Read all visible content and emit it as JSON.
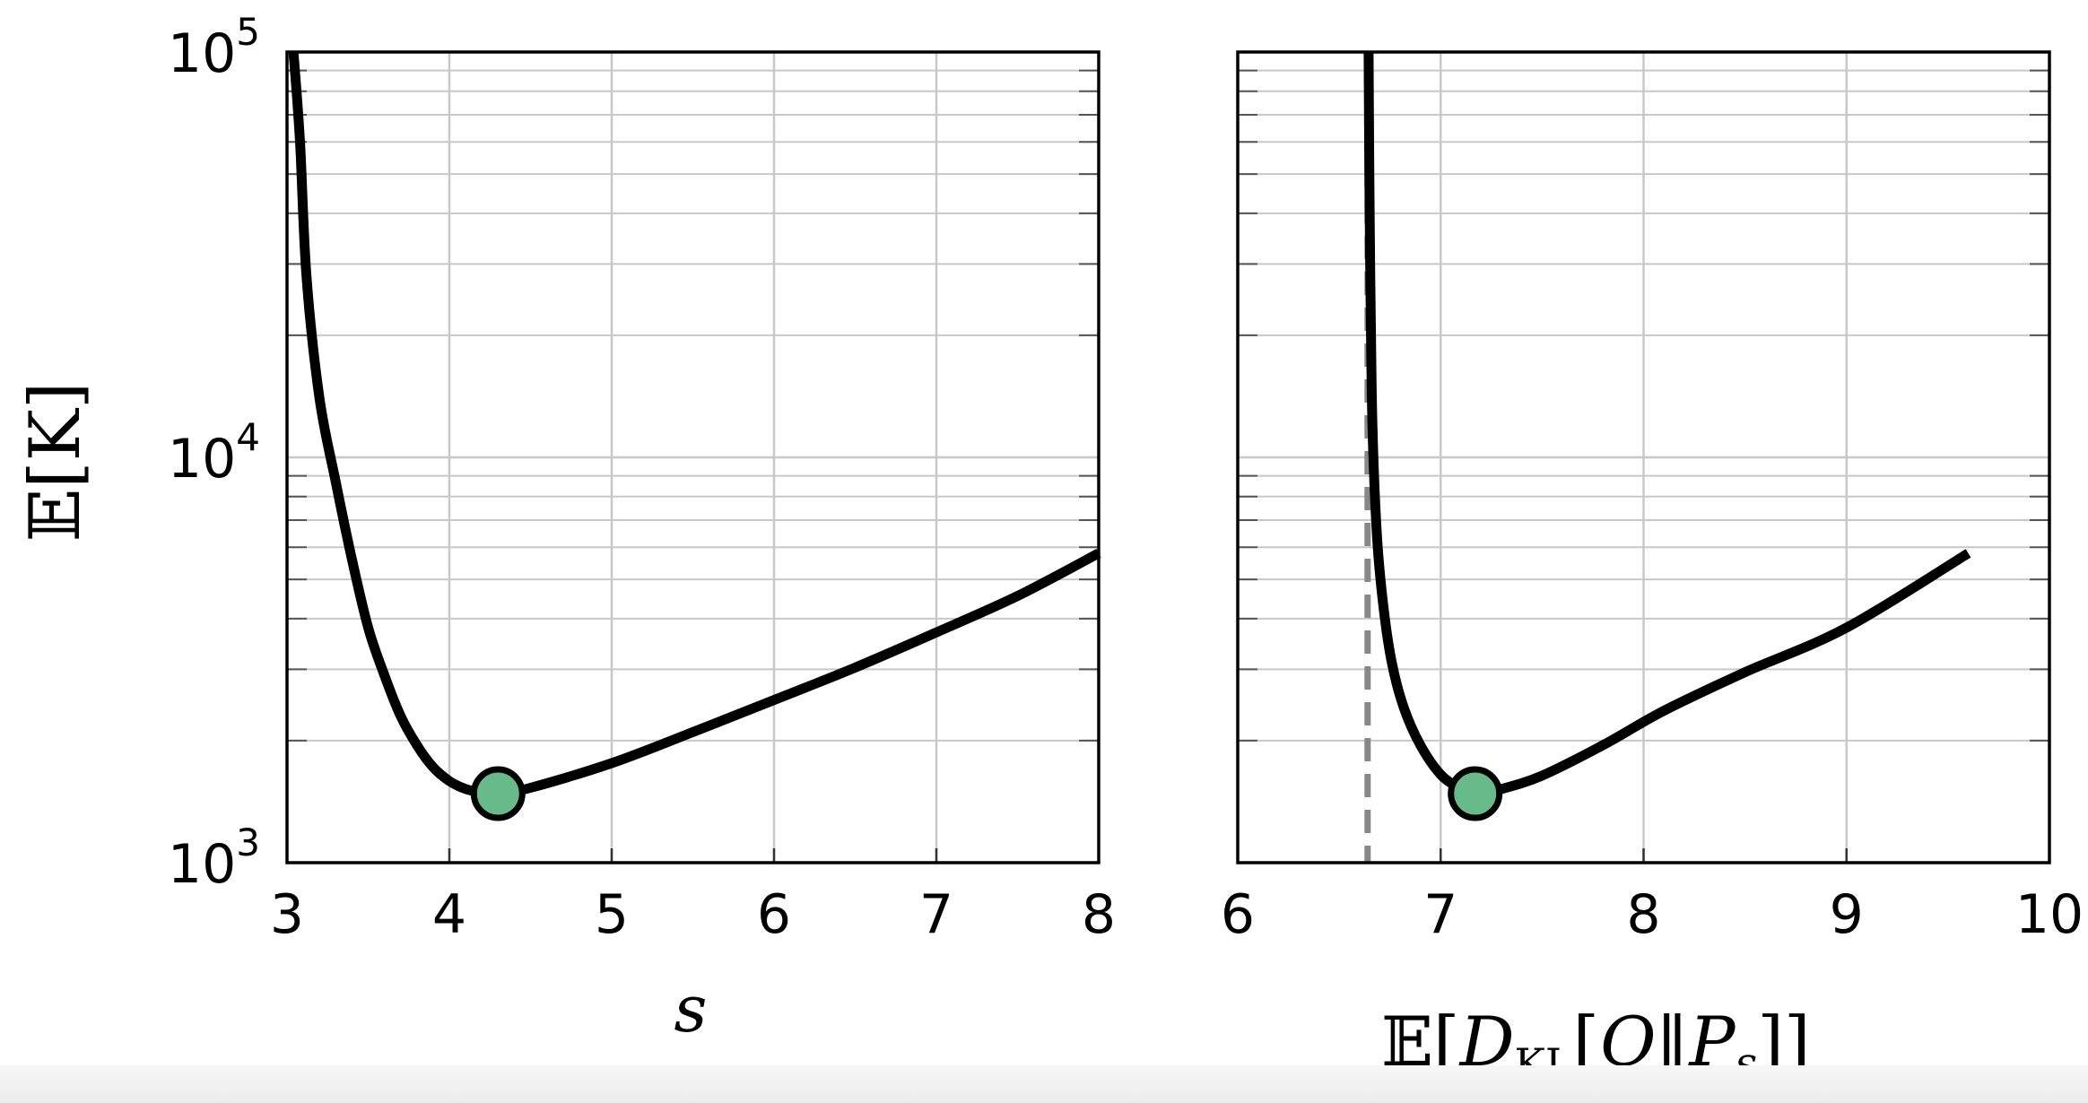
{
  "chart_data": [
    {
      "type": "line",
      "xlabel": "s",
      "ylabel": "𝔼[K]",
      "xlim": [
        3,
        8
      ],
      "ylim": [
        1000,
        100000
      ],
      "yscale": "log",
      "grid": true,
      "xticks": [
        "3",
        "4",
        "5",
        "6",
        "7",
        "8"
      ],
      "yticks": [
        {
          "value": 1000,
          "base": "10",
          "exp": "3"
        },
        {
          "value": 10000,
          "base": "10",
          "exp": "4"
        },
        {
          "value": 100000,
          "base": "10",
          "exp": "5"
        }
      ],
      "series": [
        {
          "color": "#000000",
          "x": [
            3.04,
            3.08,
            3.12,
            3.2,
            3.3,
            3.4,
            3.5,
            3.6,
            3.7,
            3.8,
            3.9,
            4.0,
            4.1,
            4.2,
            4.3,
            4.5,
            5.0,
            5.5,
            6.0,
            6.5,
            7.0,
            7.5,
            8.0
          ],
          "y": [
            100000,
            60000,
            28000,
            14000,
            8700,
            5600,
            3800,
            2900,
            2300,
            1950,
            1720,
            1590,
            1520,
            1490,
            1480,
            1530,
            1760,
            2100,
            2520,
            3030,
            3700,
            4550,
            5800
          ]
        }
      ],
      "highlight_point": {
        "x": 4.3,
        "y": 1480,
        "color": "#66bb88"
      }
    },
    {
      "type": "line",
      "xlabel": "𝔼[D_KL[Q||P_s]]",
      "xlim": [
        6,
        10
      ],
      "ylim": [
        1000,
        100000
      ],
      "yscale": "log",
      "grid": true,
      "xticks": [
        "6",
        "7",
        "8",
        "9",
        "10"
      ],
      "vline": {
        "x": 6.64,
        "style": "dashed",
        "color": "#888888"
      },
      "series": [
        {
          "color": "#000000",
          "x": [
            6.645,
            6.65,
            6.66,
            6.67,
            6.69,
            6.72,
            6.76,
            6.82,
            6.9,
            7.0,
            7.1,
            7.17,
            7.3,
            7.5,
            7.8,
            8.1,
            8.5,
            9.0,
            9.6
          ],
          "y": [
            100000,
            40000,
            15000,
            9500,
            6000,
            4200,
            3100,
            2400,
            1950,
            1650,
            1520,
            1480,
            1520,
            1640,
            1950,
            2370,
            2950,
            3800,
            5800
          ]
        }
      ],
      "highlight_point": {
        "x": 7.17,
        "y": 1480,
        "color": "#66bb88"
      }
    }
  ]
}
